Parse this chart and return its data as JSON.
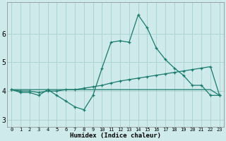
{
  "xlabel": "Humidex (Indice chaleur)",
  "x": [
    0,
    1,
    2,
    3,
    4,
    5,
    6,
    7,
    8,
    9,
    10,
    11,
    12,
    13,
    14,
    15,
    16,
    17,
    18,
    19,
    20,
    21,
    22,
    23
  ],
  "line1_y": [
    4.05,
    3.95,
    3.95,
    3.85,
    4.05,
    3.85,
    3.65,
    3.45,
    3.35,
    3.85,
    4.8,
    5.7,
    5.75,
    5.7,
    6.65,
    6.2,
    5.5,
    5.1,
    4.8,
    4.55,
    4.2,
    4.2,
    3.85,
    3.85
  ],
  "line2_y": [
    4.05,
    4.0,
    4.0,
    3.95,
    4.0,
    4.0,
    4.05,
    4.05,
    4.1,
    4.15,
    4.2,
    4.28,
    4.35,
    4.4,
    4.45,
    4.5,
    4.55,
    4.6,
    4.65,
    4.7,
    4.75,
    4.8,
    4.85,
    3.85
  ],
  "line3_y": [
    4.05,
    4.05,
    4.05,
    4.05,
    4.05,
    4.05,
    4.05,
    4.05,
    4.05,
    4.05,
    4.05,
    4.05,
    4.05,
    4.05,
    4.05,
    4.05,
    4.05,
    4.05,
    4.05,
    4.05,
    4.05,
    4.05,
    4.05,
    3.85
  ],
  "line_color": "#1a7a6e",
  "bg_color": "#ceeaea",
  "grid_color": "#aad0d0",
  "ylim": [
    2.75,
    7.1
  ],
  "yticks": [
    3,
    4,
    5,
    6
  ],
  "xlim": [
    -0.5,
    23.5
  ]
}
